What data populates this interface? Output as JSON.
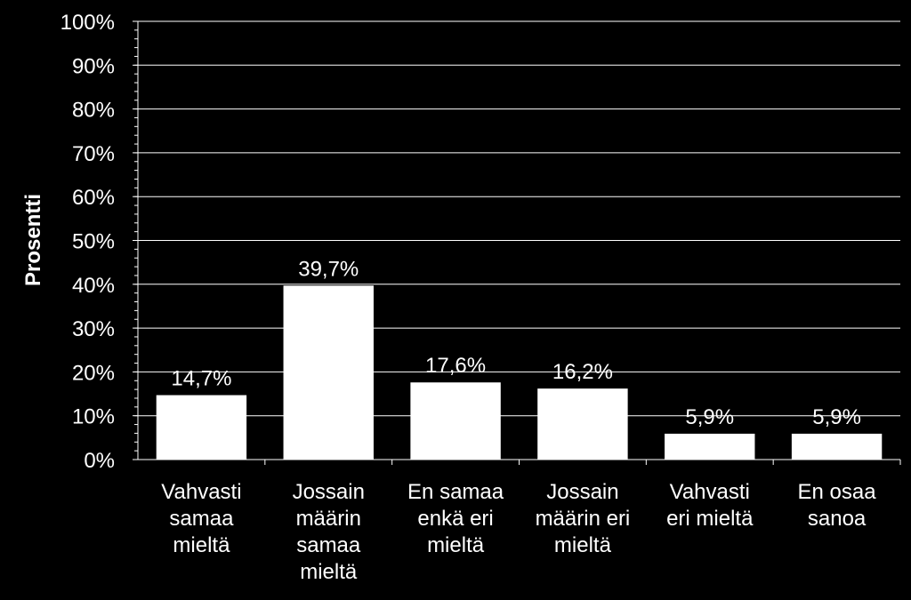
{
  "chart_data": {
    "type": "bar",
    "title": "",
    "xlabel": "",
    "ylabel": "Prosentti",
    "ylim": [
      0,
      100
    ],
    "ytick_step": 10,
    "ytick_suffix": "%",
    "grid": true,
    "categories": [
      "Vahvasti samaa mieltä",
      "Jossain määrin samaa mieltä",
      "En samaa enkä eri mieltä",
      "Jossain määrin eri mieltä",
      "Vahvasti eri mieltä",
      "En osaa sanoa"
    ],
    "category_lines": [
      [
        "Vahvasti",
        "samaa",
        "mieltä"
      ],
      [
        "Jossain",
        "määrin",
        "samaa",
        "mieltä"
      ],
      [
        "En samaa",
        "enkä eri",
        "mieltä"
      ],
      [
        "Jossain",
        "määrin eri",
        "mieltä"
      ],
      [
        "Vahvasti",
        "eri mieltä"
      ],
      [
        "En osaa",
        "sanoa"
      ]
    ],
    "values": [
      14.7,
      39.7,
      17.6,
      16.2,
      5.9,
      5.9
    ],
    "data_labels": [
      "14,7%",
      "39,7%",
      "17,6%",
      "16,2%",
      "5,9%",
      "5,9%"
    ],
    "colors": {
      "background": "#000000",
      "bar": "#ffffff",
      "grid": "#ffffff",
      "text": "#ffffff"
    }
  }
}
